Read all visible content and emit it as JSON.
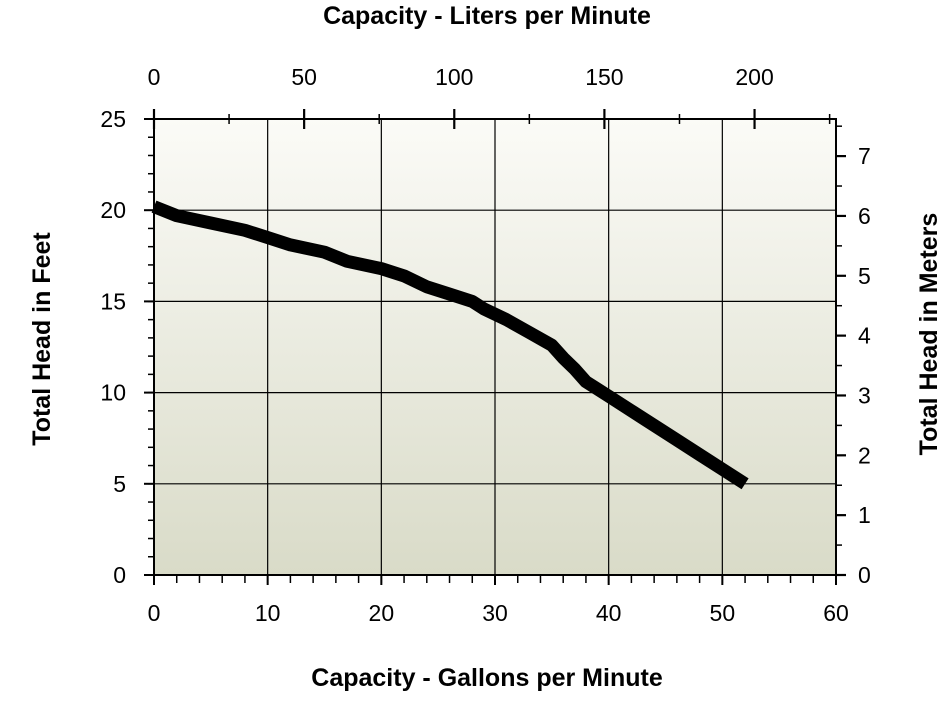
{
  "chart_data": {
    "type": "line",
    "title": "",
    "xlabel": "Capacity - Gallons per Minute",
    "ylabel": "Total Head in Feet",
    "x2label": "Capacity - Liters per Minute",
    "y2label": "Total Head in Meters",
    "xlim": [
      0,
      60
    ],
    "ylim": [
      0,
      25
    ],
    "x_ticks": [
      0,
      10,
      20,
      30,
      40,
      50,
      60
    ],
    "y_ticks": [
      0,
      5,
      10,
      15,
      20,
      25
    ],
    "x2_ticks": [
      0,
      50,
      100,
      150,
      200
    ],
    "y2_ticks": [
      0,
      1,
      2,
      3,
      4,
      5,
      6,
      7
    ],
    "grid": true,
    "colors": {
      "line": "#000000",
      "plot_bg_top": "#fbfbf7",
      "plot_bg_bottom": "#d9dbc8"
    },
    "series": [
      {
        "name": "",
        "x": [
          0,
          2,
          5,
          8,
          10,
          12,
          15,
          17,
          20,
          22,
          24,
          26,
          28,
          29,
          31,
          33,
          35,
          36,
          37,
          38,
          40,
          42,
          44,
          46,
          48,
          50,
          52
        ],
        "y": [
          20.2,
          19.7,
          19.3,
          18.9,
          18.5,
          18.1,
          17.7,
          17.2,
          16.8,
          16.4,
          15.8,
          15.4,
          15.0,
          14.6,
          14.0,
          13.3,
          12.6,
          11.9,
          11.3,
          10.6,
          9.8,
          9.0,
          8.2,
          7.4,
          6.6,
          5.8,
          5.0
        ]
      }
    ]
  }
}
